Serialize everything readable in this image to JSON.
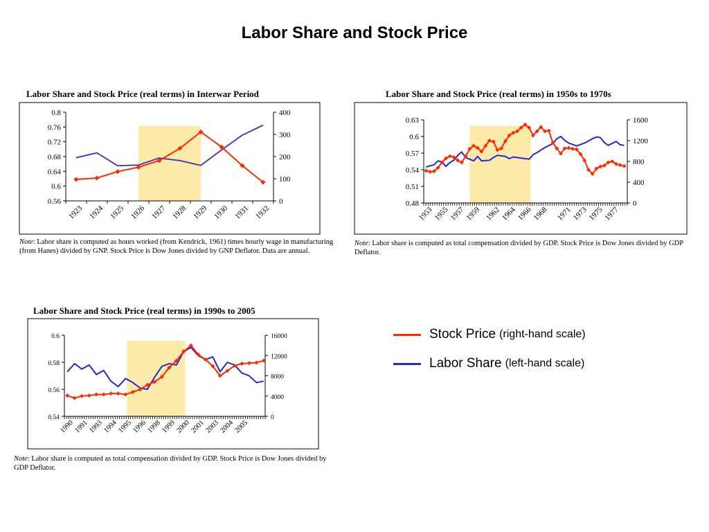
{
  "page": {
    "title": "Labor Share and Stock Price"
  },
  "colors": {
    "stock": "#ff2a00",
    "labor": "#1f28d6",
    "labor_interwar": "#4a3fb8",
    "shade": "#fde9a8"
  },
  "legend": {
    "stock": {
      "main": "Stock Price",
      "sub": "(right-hand scale)"
    },
    "labor": {
      "main": "Labor Share",
      "sub": "(left-hand scale)"
    }
  },
  "notes": {
    "interwar": {
      "label": "Note",
      "text": ": Labor share is computed as hours worked (from Kendrick, 1961)  times hourly wage in manufacturing (from Hanes) divided by GNP. Stock Price is Dow Jones divided by GNP Deflator. Data are annual."
    },
    "postwar": {
      "label": "Note",
      "text": ": Labor share is computed as total compensation divided by GDP. Stock Price is Dow Jones divided by GDP Deflator."
    },
    "nineties": {
      "label": "Note",
      "text": ": Labor share is computed as total compensation divided by GDP. Stock Price is Dow Jones divided by GDP Deflator."
    }
  },
  "chart_data": [
    {
      "id": "interwar",
      "type": "line",
      "title": "Labor Share and Stock Price (real terms)  in Interwar Period",
      "x": [
        1923,
        1924,
        1925,
        1926,
        1927,
        1928,
        1929,
        1930,
        1931,
        1932
      ],
      "x_tick_labels": [
        "1923",
        "1924",
        "1925",
        "1926",
        "1927",
        "1928",
        "1929",
        "1930",
        "1931",
        "1932"
      ],
      "left_axis": {
        "ylim": [
          0.56,
          0.8
        ],
        "ticks": [
          "0.56",
          "0.6",
          "0.64",
          "0.68",
          "0.72",
          "0.76",
          "0.8"
        ]
      },
      "right_axis": {
        "ylim": [
          0,
          400
        ],
        "ticks": [
          "0",
          "100",
          "200",
          "300",
          "400"
        ]
      },
      "shaded_period": [
        1926,
        1929
      ],
      "series": [
        {
          "key": "labor",
          "axis": "left",
          "markers": false,
          "x": [
            1923,
            1924,
            1925,
            1926,
            1927,
            1928,
            1929,
            1930,
            1931,
            1932
          ],
          "values": [
            0.677,
            0.69,
            0.655,
            0.657,
            0.676,
            0.669,
            0.656,
            0.698,
            0.738,
            0.765
          ]
        },
        {
          "key": "stock",
          "axis": "right",
          "markers": true,
          "x": [
            1923,
            1924,
            1925,
            1926,
            1927,
            1928,
            1929,
            1930,
            1931,
            1932
          ],
          "values": [
            97,
            103,
            132,
            152,
            182,
            237,
            311,
            243,
            159,
            84
          ]
        }
      ]
    },
    {
      "id": "postwar",
      "type": "line",
      "title": "Labor Share and Stock Price (real terms) in 1950s to 1970s",
      "x_tick_labels": [
        "1953",
        "1955",
        "1957",
        "1959",
        "1962",
        "1964",
        "1966",
        "1968",
        "1971",
        "1973",
        "1975",
        "1977"
      ],
      "x_ticks": [
        1953,
        1955,
        1957,
        1959,
        1961.5,
        1963.5,
        1965.5,
        1967.5,
        1970.5,
        1972.5,
        1974.5,
        1976.5
      ],
      "x_range": [
        1952.7,
        1978.4
      ],
      "left_axis": {
        "ylim": [
          0.48,
          0.63
        ],
        "ticks": [
          "0.48",
          "0.51",
          "0.54",
          "0.57",
          "0.6",
          "0.63"
        ]
      },
      "right_axis": {
        "ylim": [
          0,
          1600
        ],
        "ticks": [
          "0",
          "400",
          "800",
          "1200",
          "1600"
        ]
      },
      "shaded_period": [
        1958.5,
        1966.2
      ],
      "series": [
        {
          "key": "labor",
          "axis": "left",
          "markers": false,
          "x": [
            1953,
            1954,
            1954.5,
            1955,
            1955.5,
            1956,
            1956.5,
            1957,
            1957.5,
            1958,
            1959,
            1959.5,
            1960,
            1961,
            1961.5,
            1962,
            1963,
            1963.5,
            1964,
            1965,
            1966,
            1966.5,
            1967,
            1968,
            1969,
            1969.5,
            1970,
            1970.5,
            1971,
            1972,
            1973,
            1974,
            1974.5,
            1975,
            1975.5,
            1976,
            1977,
            1977.5,
            1978
          ],
          "values": [
            0.545,
            0.549,
            0.556,
            0.554,
            0.546,
            0.553,
            0.557,
            0.566,
            0.572,
            0.562,
            0.556,
            0.564,
            0.556,
            0.557,
            0.562,
            0.566,
            0.564,
            0.56,
            0.563,
            0.561,
            0.559,
            0.567,
            0.571,
            0.58,
            0.587,
            0.596,
            0.6,
            0.593,
            0.588,
            0.583,
            0.588,
            0.596,
            0.599,
            0.598,
            0.589,
            0.584,
            0.591,
            0.585,
            0.584
          ]
        },
        {
          "key": "stock",
          "axis": "right",
          "markers": true,
          "x": [
            1953,
            1953.5,
            1954,
            1954.5,
            1955,
            1955.5,
            1956,
            1956.5,
            1957,
            1957.5,
            1958,
            1958.5,
            1959,
            1959.5,
            1960,
            1960.5,
            1961,
            1961.5,
            1962,
            1962.5,
            1963,
            1963.5,
            1964,
            1964.5,
            1965,
            1965.5,
            1966,
            1966.5,
            1967,
            1967.5,
            1968,
            1968.5,
            1969,
            1969.5,
            1970,
            1970.5,
            1971,
            1971.5,
            1972,
            1972.5,
            1973,
            1973.5,
            1974,
            1974.5,
            1975,
            1975.5,
            1976,
            1976.5,
            1977,
            1977.5,
            1978
          ],
          "values": [
            620,
            600,
            610,
            680,
            780,
            860,
            900,
            880,
            820,
            780,
            900,
            1040,
            1100,
            1060,
            990,
            1100,
            1200,
            1180,
            1020,
            1050,
            1190,
            1300,
            1350,
            1380,
            1450,
            1510,
            1450,
            1300,
            1380,
            1460,
            1380,
            1390,
            1160,
            1050,
            950,
            1050,
            1060,
            1040,
            1030,
            940,
            820,
            640,
            560,
            660,
            700,
            720,
            780,
            800,
            750,
            730,
            710
          ]
        }
      ]
    },
    {
      "id": "nineties",
      "type": "line",
      "title": "Labor Share and Stock Price (real terms) in 1990s to 2005",
      "x_tick_labels": [
        "1990",
        "1991",
        "1993",
        "1994",
        "1995",
        "1996",
        "1998",
        "1999",
        "2000",
        "2001",
        "2003",
        "2004",
        "2005"
      ],
      "x_ticks": [
        1990,
        1991,
        1992,
        1993,
        1994,
        1995,
        1996,
        1997,
        1998,
        1999,
        2000,
        2001,
        2002
      ],
      "x_range": [
        1989.8,
        2003.6
      ],
      "left_axis": {
        "ylim": [
          0.54,
          0.6
        ],
        "ticks": [
          "0.54",
          "0.56",
          "0.58",
          "0.6"
        ]
      },
      "right_axis": {
        "ylim": [
          0,
          16000
        ],
        "ticks": [
          "0",
          "4000",
          "8000",
          "12000",
          "16000"
        ]
      },
      "shaded_period": [
        1994.1,
        1998.1
      ],
      "series": [
        {
          "key": "labor",
          "axis": "left",
          "markers": false,
          "x": [
            1990,
            1990.5,
            1991,
            1991.5,
            1992,
            1992.5,
            1993,
            1993.5,
            1994,
            1994.5,
            1995,
            1995.5,
            1996,
            1996.5,
            1997,
            1997.5,
            1998,
            1998.5,
            1999,
            1999.5,
            2000,
            2000.5,
            2001,
            2001.5,
            2002,
            2002.5,
            2003,
            2003.5
          ],
          "values": [
            0.573,
            0.579,
            0.575,
            0.578,
            0.571,
            0.574,
            0.566,
            0.562,
            0.568,
            0.565,
            0.561,
            0.56,
            0.569,
            0.577,
            0.579,
            0.578,
            0.588,
            0.591,
            0.585,
            0.582,
            0.584,
            0.573,
            0.58,
            0.578,
            0.572,
            0.57,
            0.565,
            0.566
          ]
        },
        {
          "key": "stock",
          "axis": "right",
          "markers": true,
          "x": [
            1990,
            1990.5,
            1991,
            1991.5,
            1992,
            1992.5,
            1993,
            1993.5,
            1994,
            1994.5,
            1995,
            1995.5,
            1996,
            1996.5,
            1997,
            1997.5,
            1998,
            1998.5,
            1999,
            1999.5,
            2000,
            2000.5,
            2001,
            2001.5,
            2002,
            2002.5,
            2003,
            2003.5
          ],
          "values": [
            4100,
            3600,
            4000,
            4100,
            4300,
            4300,
            4500,
            4500,
            4300,
            4800,
            5300,
            6200,
            6800,
            7800,
            9600,
            11000,
            12800,
            14000,
            12200,
            11200,
            9900,
            8000,
            9000,
            10000,
            10400,
            10500,
            10600,
            11000
          ]
        }
      ]
    }
  ]
}
